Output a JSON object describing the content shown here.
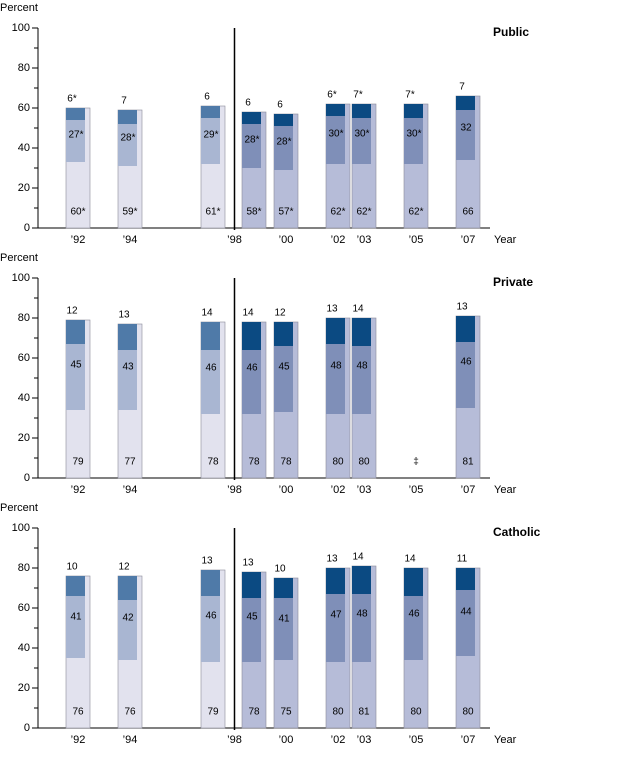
{
  "chart_data": [
    {
      "type": "bar",
      "title": "Public",
      "y_label": "Percent",
      "x_label": "Year",
      "categories": [
        "’92",
        "’94",
        null,
        null,
        "’00",
        "’02",
        "’03",
        "’05",
        "’07"
      ],
      "break_label": "’98",
      "ylim": [
        0,
        100
      ],
      "yticks": [
        0,
        20,
        40,
        60,
        80,
        100
      ],
      "yminorticks": [
        10,
        30,
        50,
        70,
        90
      ],
      "series": [
        {
          "color": "#b6bcd8",
          "color_before_break": "#e2e2ee",
          "values": [
            60,
            59,
            61,
            58,
            57,
            62,
            62,
            62,
            66
          ],
          "value_labels": [
            "60*",
            "59*",
            "61*",
            "58*",
            "57*",
            "62*",
            "62*",
            "62*",
            "66"
          ]
        },
        {
          "color": "#7f8fb8",
          "color_before_break": "#a9b6d2",
          "values": [
            27,
            28,
            29,
            28,
            28,
            30,
            30,
            30,
            32
          ],
          "value_labels": [
            "27*",
            "28*",
            "29*",
            "28*",
            "28*",
            "30*",
            "30*",
            "30*",
            "32"
          ]
        },
        {
          "color": "#0b4a82",
          "color_before_break": "#4f7aa8",
          "values": [
            6,
            7,
            6,
            6,
            6,
            6,
            7,
            7,
            7
          ],
          "value_labels": [
            "6*",
            "7",
            "6",
            "6",
            "6",
            "6*",
            "7*",
            "7*",
            "7"
          ]
        }
      ]
    },
    {
      "type": "bar",
      "title": "Private",
      "y_label": "Percent",
      "x_label": "Year",
      "categories": [
        "’92",
        "’94",
        null,
        null,
        "’00",
        "’02",
        "’03",
        "’05",
        "’07"
      ],
      "break_label": "’98",
      "ylim": [
        0,
        100
      ],
      "yticks": [
        0,
        20,
        40,
        60,
        80,
        100
      ],
      "yminorticks": [
        10,
        30,
        50,
        70,
        90
      ],
      "series": [
        {
          "color": "#b6bcd8",
          "color_before_break": "#e2e2ee",
          "values": [
            79,
            77,
            78,
            78,
            78,
            80,
            80,
            null,
            81
          ],
          "value_labels": [
            "79",
            "77",
            "78",
            "78",
            "78",
            "80",
            "80",
            "‡",
            "81"
          ]
        },
        {
          "color": "#7f8fb8",
          "color_before_break": "#a9b6d2",
          "values": [
            45,
            43,
            46,
            46,
            45,
            48,
            48,
            null,
            46
          ],
          "value_labels": [
            "45",
            "43",
            "46",
            "46",
            "45",
            "48",
            "48",
            null,
            "46"
          ]
        },
        {
          "color": "#0b4a82",
          "color_before_break": "#4f7aa8",
          "values": [
            12,
            13,
            14,
            14,
            12,
            13,
            14,
            null,
            13
          ],
          "value_labels": [
            "12",
            "13",
            "14",
            "14",
            "12",
            "13",
            "14",
            null,
            "13"
          ]
        }
      ]
    },
    {
      "type": "bar",
      "title": "Catholic",
      "y_label": "Percent",
      "x_label": "Year",
      "categories": [
        "’92",
        "’94",
        null,
        null,
        "’00",
        "’02",
        "’03",
        "’05",
        "’07"
      ],
      "break_label": "’98",
      "ylim": [
        0,
        100
      ],
      "yticks": [
        0,
        20,
        40,
        60,
        80,
        100
      ],
      "yminorticks": [
        10,
        30,
        50,
        70,
        90
      ],
      "series": [
        {
          "color": "#b6bcd8",
          "color_before_break": "#e2e2ee",
          "values": [
            76,
            76,
            79,
            78,
            75,
            80,
            81,
            80,
            80
          ],
          "value_labels": [
            "76",
            "76",
            "79",
            "78",
            "75",
            "80",
            "81",
            "80",
            "80"
          ]
        },
        {
          "color": "#7f8fb8",
          "color_before_break": "#a9b6d2",
          "values": [
            41,
            42,
            46,
            45,
            41,
            47,
            48,
            46,
            44
          ],
          "value_labels": [
            "41",
            "42",
            "46",
            "45",
            "41",
            "47",
            "48",
            "46",
            "44"
          ]
        },
        {
          "color": "#0b4a82",
          "color_before_break": "#4f7aa8",
          "values": [
            10,
            12,
            13,
            13,
            10,
            13,
            14,
            14,
            11
          ],
          "value_labels": [
            "10",
            "12",
            "13",
            "13",
            "10",
            "13",
            "14",
            "14",
            "11"
          ]
        }
      ]
    }
  ]
}
